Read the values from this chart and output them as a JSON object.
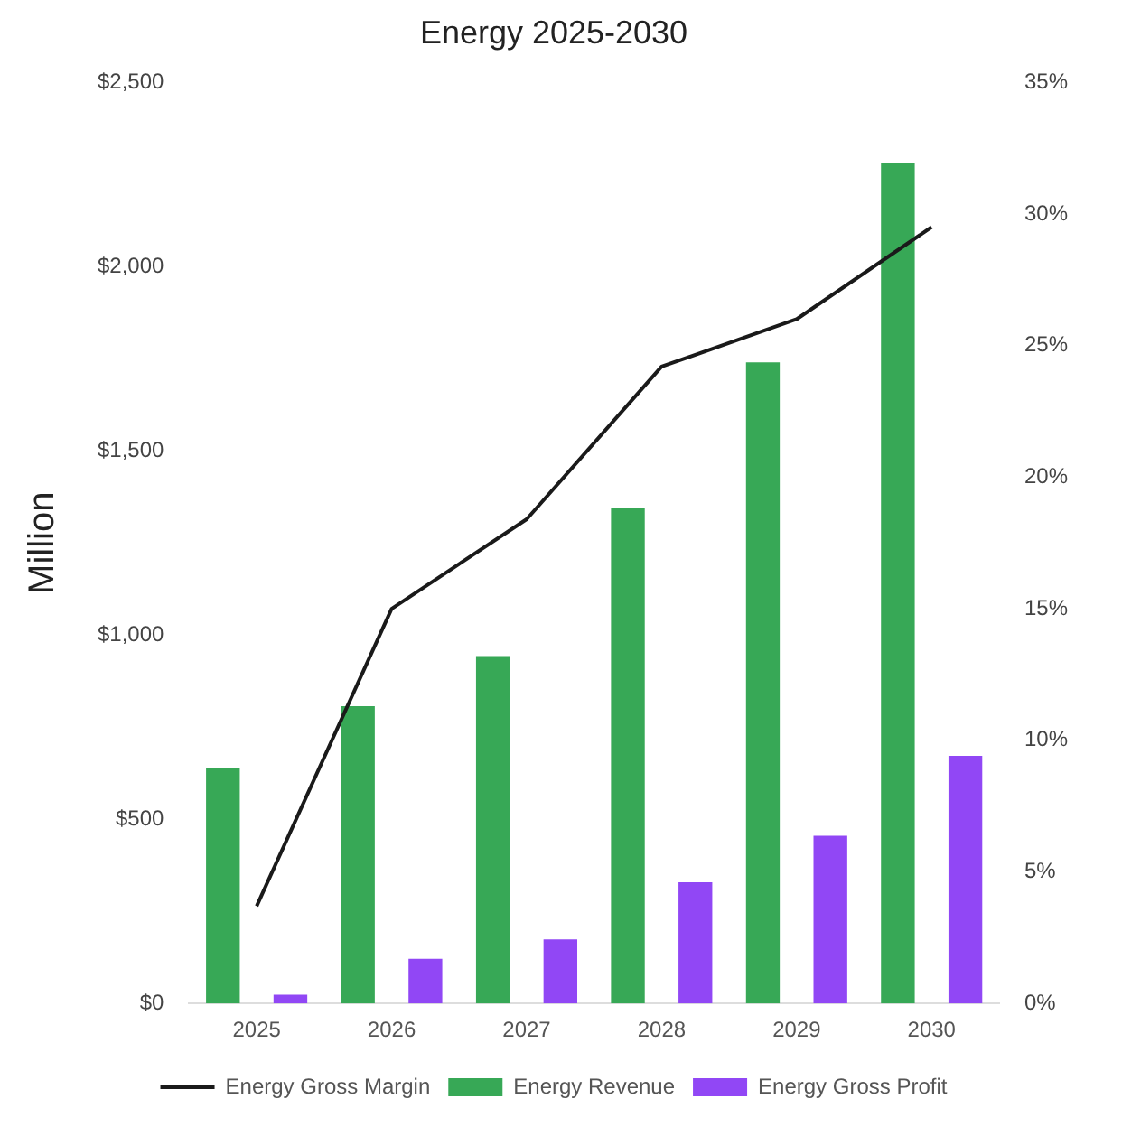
{
  "chart_data": {
    "type": "bar",
    "title": "Energy 2025-2030",
    "ylabel": "Million",
    "categories": [
      "2025",
      "2026",
      "2027",
      "2028",
      "2029",
      "2030"
    ],
    "series": [
      {
        "name": "Energy Revenue",
        "color": "#37a856",
        "values": [
          638,
          807,
          943,
          1345,
          1740,
          2280
        ]
      },
      {
        "name": "Energy Gross Profit",
        "color": "#9147f5",
        "values": [
          24,
          121,
          174,
          329,
          455,
          672
        ]
      },
      {
        "name": "Energy Gross Margin",
        "type": "line",
        "axis": "y2",
        "color": "#1a1a1a",
        "values": [
          3.7,
          15.0,
          18.4,
          24.2,
          26.0,
          29.5
        ]
      }
    ],
    "ylim": [
      0,
      2500
    ],
    "yticks": [
      {
        "value": 0,
        "label": "$0"
      },
      {
        "value": 500,
        "label": "$500"
      },
      {
        "value": 1000,
        "label": "$1,000"
      },
      {
        "value": 1500,
        "label": "$1,500"
      },
      {
        "value": 2000,
        "label": "$2,000"
      },
      {
        "value": 2500,
        "label": "$2,500"
      }
    ],
    "y2lim": [
      0,
      35
    ],
    "y2ticks": [
      {
        "value": 0,
        "label": "0%"
      },
      {
        "value": 5,
        "label": "5%"
      },
      {
        "value": 10,
        "label": "10%"
      },
      {
        "value": 15,
        "label": "15%"
      },
      {
        "value": 20,
        "label": "20%"
      },
      {
        "value": 25,
        "label": "25%"
      },
      {
        "value": 30,
        "label": "30%"
      },
      {
        "value": 35,
        "label": "35%"
      }
    ],
    "grid": false,
    "legend": "bottom",
    "marker": "none",
    "line_style": "solid"
  }
}
